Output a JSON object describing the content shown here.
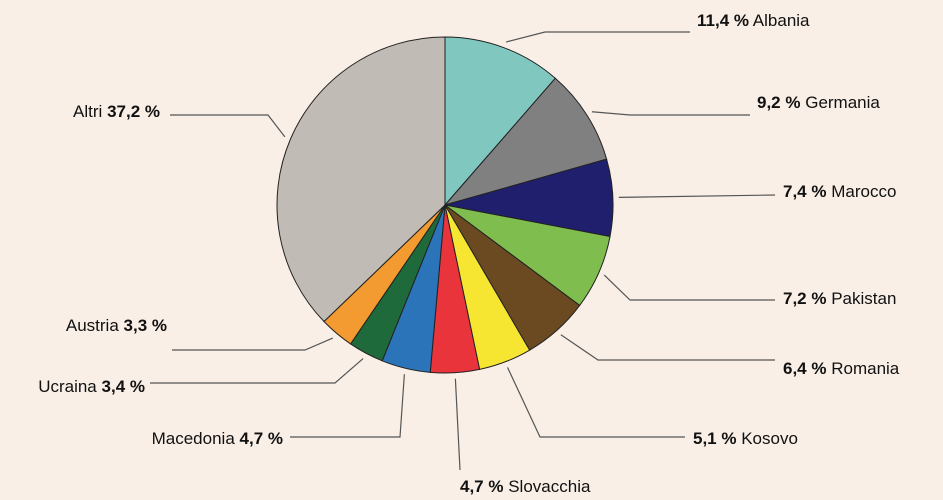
{
  "chart_data": {
    "type": "pie",
    "categories": [
      "Albania",
      "Germania",
      "Marocco",
      "Pakistan",
      "Romania",
      "Kosovo",
      "Slovacchia",
      "Macedonia",
      "Ucraina",
      "Austria",
      "Altri"
    ],
    "values": [
      11.4,
      9.2,
      7.4,
      7.2,
      6.4,
      5.1,
      4.7,
      4.7,
      3.4,
      3.3,
      37.2
    ],
    "value_labels": [
      "11,4 %",
      "9,2 %",
      "7,4 %",
      "7,2 %",
      "6,4 %",
      "5,1 %",
      "4,7 %",
      "4,7 %",
      "3,4 %",
      "3,3 %",
      "37,2 %"
    ],
    "colors": [
      "#80c7c0",
      "#808080",
      "#1f1f6e",
      "#7fbe4e",
      "#6b4a22",
      "#f6e632",
      "#e8343a",
      "#2b74b9",
      "#1f6a3a",
      "#f39a30",
      "#c1bbb5"
    ]
  }
}
